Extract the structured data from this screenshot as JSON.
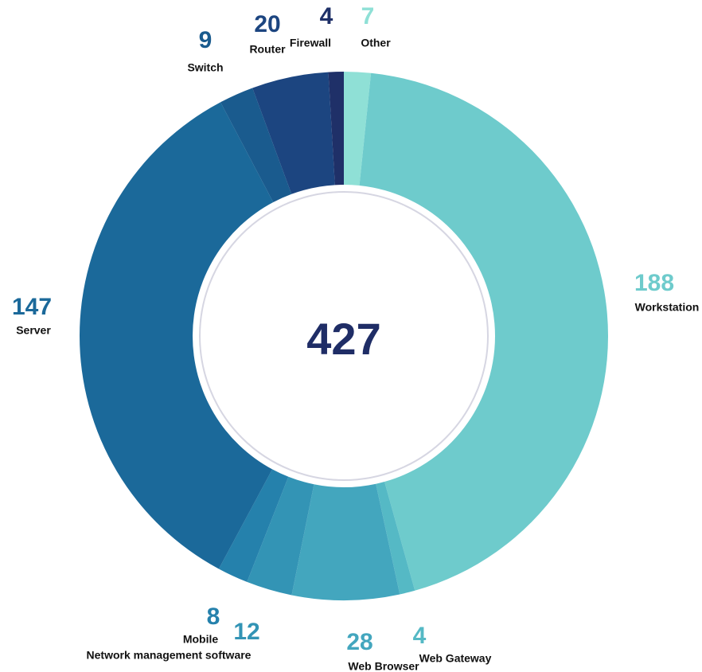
{
  "chart_data": {
    "type": "donut",
    "total": 427,
    "categories": [
      "Other",
      "Workstation",
      "Web Gateway",
      "Web Browser",
      "Network management software",
      "Mobile",
      "Server",
      "Switch",
      "Router",
      "Firewall"
    ],
    "values": [
      7,
      188,
      4,
      28,
      12,
      8,
      147,
      9,
      20,
      4
    ],
    "colors": [
      "#8fe0d6",
      "#6ecbcc",
      "#55b9c5",
      "#43a6be",
      "#3394b5",
      "#2581ac",
      "#1b699a",
      "#1a5b8e",
      "#1c4580",
      "#1f3068"
    ]
  }
}
